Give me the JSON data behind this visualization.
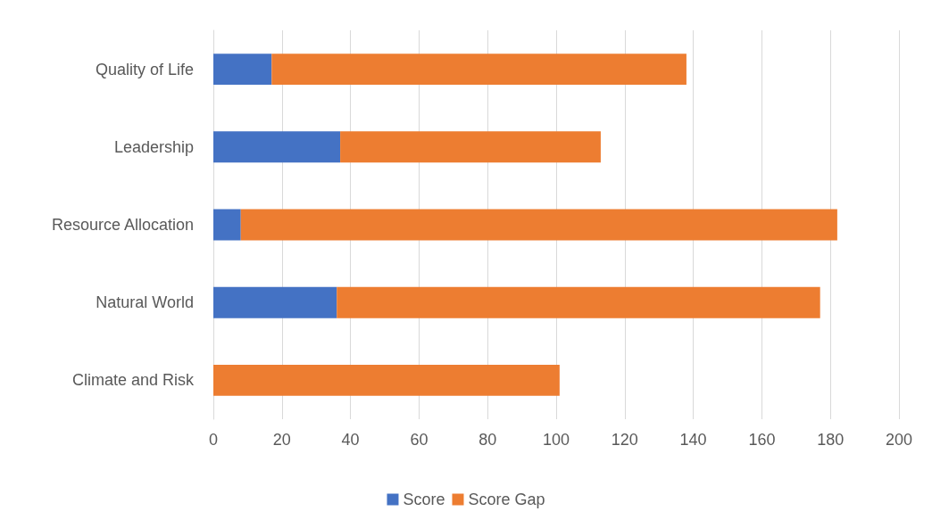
{
  "chart_data": {
    "type": "bar",
    "orientation": "horizontal",
    "stacked": true,
    "categories": [
      "Quality of Life",
      "Leadership",
      "Resource Allocation",
      "Natural World",
      "Climate and Risk"
    ],
    "series": [
      {
        "name": "Score",
        "color": "#4472c4",
        "values": [
          17,
          37,
          8,
          36,
          0
        ]
      },
      {
        "name": "Score Gap",
        "color": "#ed7d31",
        "values": [
          121,
          76,
          174,
          141,
          101
        ]
      }
    ],
    "xlim": [
      0,
      200
    ],
    "xticks": [
      0,
      20,
      40,
      60,
      80,
      100,
      120,
      140,
      160,
      180,
      200
    ],
    "grid": "x",
    "legend": "bottom"
  }
}
